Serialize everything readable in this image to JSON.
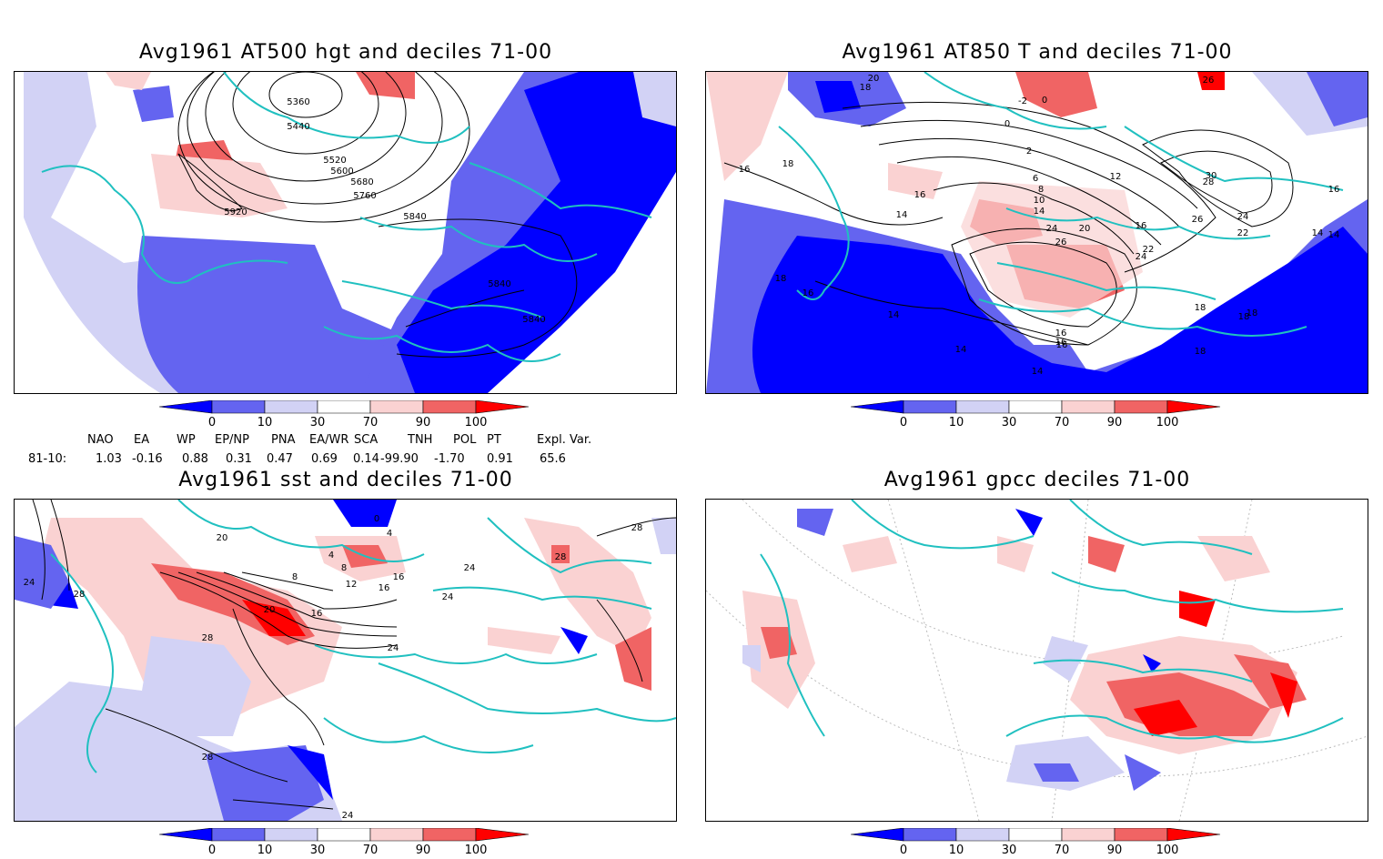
{
  "panels": [
    {
      "id": "p1",
      "title": "Avg1961 AT500 hgt and deciles 71-00",
      "contour_labels": [
        "5360",
        "5440",
        "5520",
        "5600",
        "5680",
        "5760",
        "5840",
        "5920",
        "5840",
        "5840"
      ]
    },
    {
      "id": "p2",
      "title": "Avg1961 AT850 T and deciles 71-00",
      "contour_labels": [
        "20",
        "18",
        "-2",
        "0",
        "0",
        "2",
        "6",
        "8",
        "10",
        "12",
        "14",
        "16",
        "16",
        "18",
        "14",
        "16",
        "20",
        "24",
        "26",
        "22",
        "24",
        "26",
        "28",
        "30",
        "24",
        "22",
        "16",
        "14",
        "18",
        "16",
        "14",
        "14",
        "18",
        "16",
        "18",
        "14",
        "16",
        "26",
        "18",
        "18",
        "14",
        "16"
      ]
    },
    {
      "id": "p3",
      "title": "Avg1961 sst and deciles 71-00",
      "contour_labels": [
        "24",
        "28",
        "20",
        "16",
        "8",
        "4",
        "0",
        "4",
        "8",
        "12",
        "16",
        "16",
        "20",
        "24",
        "28",
        "24",
        "24",
        "28",
        "28",
        "24",
        "28"
      ]
    },
    {
      "id": "p4",
      "title": "Avg1961 gpcc deciles 71-00",
      "contour_labels": []
    }
  ],
  "colorbar": {
    "labels": [
      "0",
      "10",
      "30",
      "70",
      "90",
      "100"
    ],
    "colors": [
      "#0000ff",
      "#6464f0",
      "#d2d2f5",
      "#ffffff",
      "#fad2d2",
      "#f06464",
      "#ff0000"
    ]
  },
  "teleconnections": {
    "headers": [
      "NAO",
      "EA",
      "WP",
      "EP/NP",
      "PNA",
      "EA/WR",
      "SCA",
      "TNH",
      "POL",
      "PT",
      "Expl. Var."
    ],
    "row_label": "81-10:",
    "values": [
      "1.03",
      "-0.16",
      "0.88",
      "0.31",
      "0.47",
      "0.69",
      "0.14",
      "-99.90",
      "-1.70",
      "0.91",
      "65.6"
    ]
  },
  "colors": {
    "coast": "#20c0c0",
    "contour": "#000000"
  }
}
